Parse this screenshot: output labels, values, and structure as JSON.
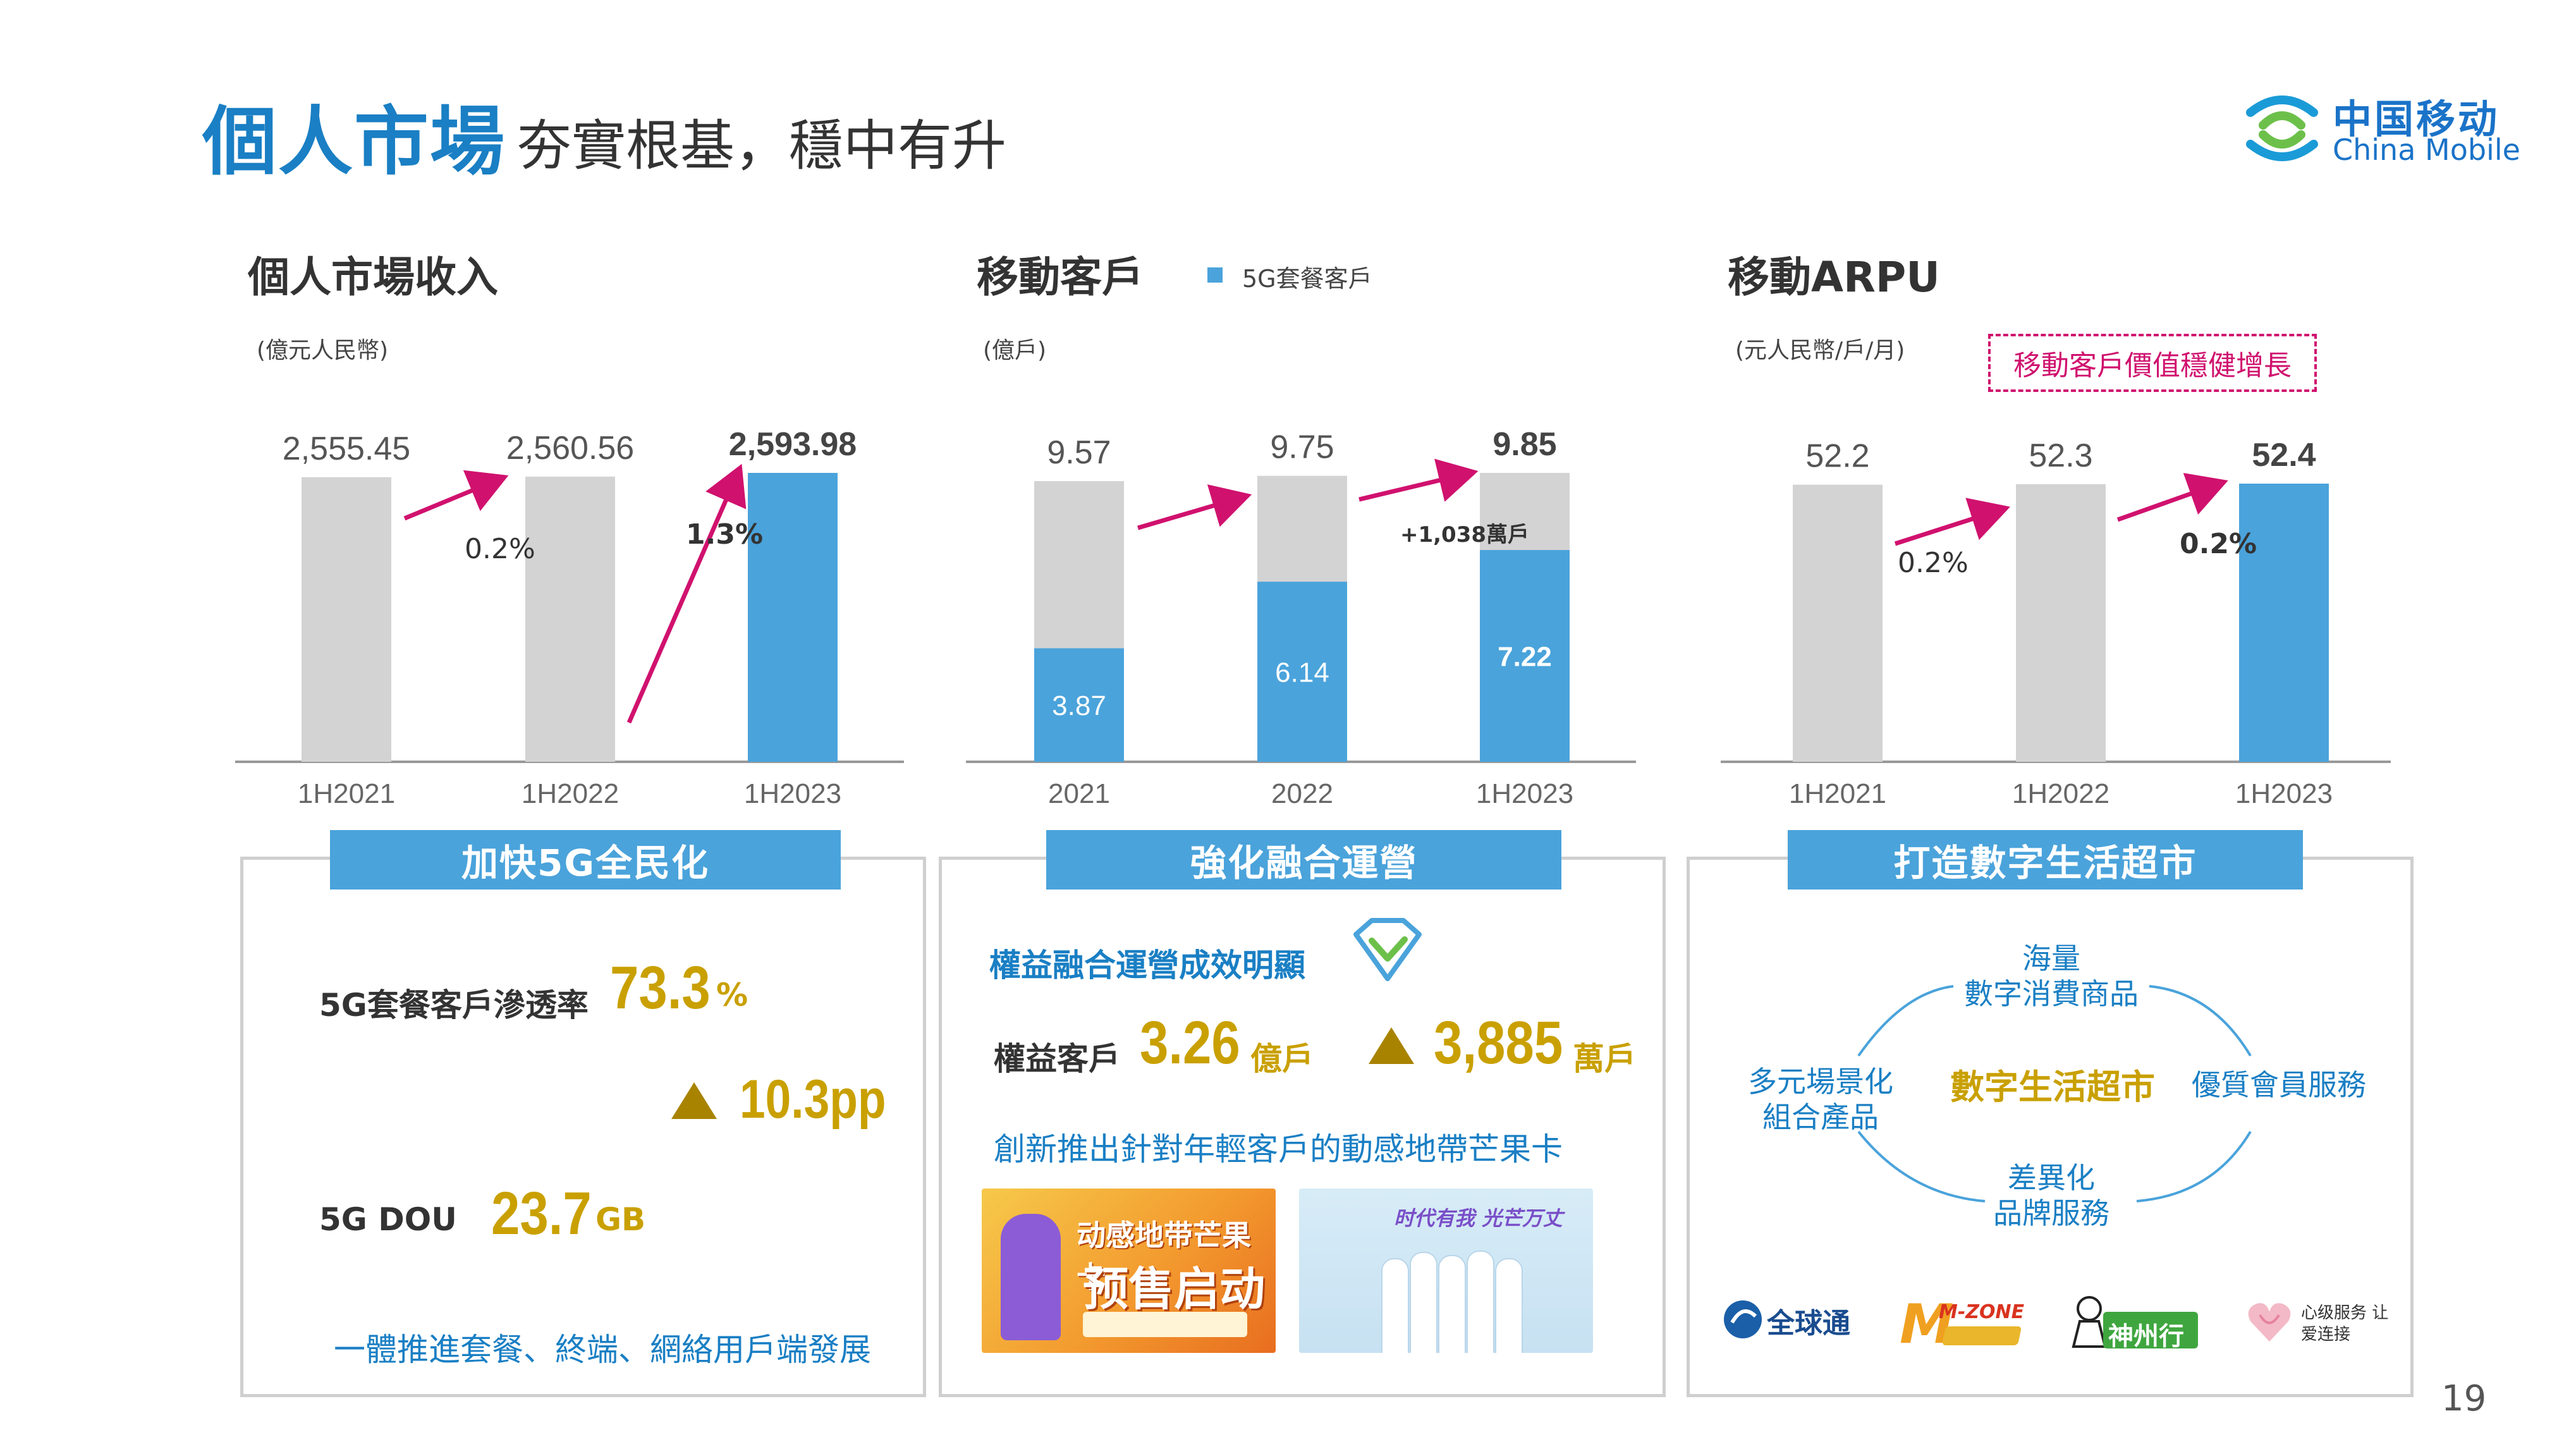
{
  "header": {
    "title_main": "個人市場",
    "title_sub": "夯實根基，穩中有升",
    "logo_cn": "中国移动",
    "logo_en": "China Mobile"
  },
  "colors": {
    "accent_blue": "#4aa3db",
    "bar_gray": "#d3d3d3",
    "arrow_pink": "#d0116e",
    "gold": "#c9a000",
    "title_blue": "#1a7fc4"
  },
  "chart_data": [
    {
      "type": "bar",
      "title": "個人市場收入",
      "unit": "(億元人民幣)",
      "categories": [
        "1H2021",
        "1H2022",
        "1H2023"
      ],
      "values": [
        2555.45,
        2560.56,
        2593.98
      ],
      "value_labels": [
        "2,555.45",
        "2,560.56",
        "2,593.98"
      ],
      "growth_labels": [
        "0.2%",
        "1.3%"
      ],
      "highlight_last": true,
      "ylim": [
        0,
        2593.98
      ]
    },
    {
      "type": "bar",
      "stacked": true,
      "title": "移動客戶",
      "unit": "(億戶)",
      "legend": "5G套餐客戶",
      "categories": [
        "2021",
        "2022",
        "1H2023"
      ],
      "totals": [
        9.57,
        9.75,
        9.85
      ],
      "series": [
        {
          "name": "5G套餐客戶",
          "values": [
            3.87,
            6.14,
            7.22
          ]
        }
      ],
      "growth_labels": [
        "",
        "+1,038萬戶"
      ],
      "ylim": [
        0,
        9.85
      ]
    },
    {
      "type": "bar",
      "title": "移動ARPU",
      "unit": "(元人民幣/戶/月)",
      "callout": "移動客戶價值穩健增長",
      "categories": [
        "1H2021",
        "1H2022",
        "1H2023"
      ],
      "values": [
        52.2,
        52.3,
        52.4
      ],
      "value_labels": [
        "52.2",
        "52.3",
        "52.4"
      ],
      "growth_labels": [
        "0.2%",
        "0.2%"
      ],
      "highlight_last": true,
      "ylim": [
        0,
        52.4
      ]
    }
  ],
  "box1": {
    "heading": "加快5G全民化",
    "pen_label": "5G套餐客戶滲透率",
    "pen_value": "73.3",
    "pen_unit": "%",
    "pen_change": "10.3pp",
    "dou_label": "5G DOU",
    "dou_value": "23.7",
    "dou_unit": "GB",
    "footer": "一體推進套餐、終端、網絡用戶端發展"
  },
  "box2": {
    "heading": "強化融合運營",
    "line1": "權益融合運營成效明顯",
    "rights_label": "權益客戶",
    "rights_value": "3.26",
    "rights_unit": "億戶",
    "rights_change": "3,885",
    "rights_change_unit": "萬戶",
    "line3": "創新推出針對年輕客戶的動感地帶芒果卡",
    "img1_text": "动感地带芒果卡",
    "img1_sub": "预售启动",
    "img2_text": "时代有我 光芒万丈"
  },
  "box3": {
    "heading": "打造數字生活超市",
    "top": [
      "海量",
      "數字消費商品"
    ],
    "left": [
      "多元場景化",
      "組合產品"
    ],
    "right": "優質會員服務",
    "bottom": [
      "差異化",
      "品牌服務"
    ],
    "center": "數字生活超市",
    "brands": [
      "全球通",
      "M-ZONE",
      "神州行",
      "心级服务 让爱连接"
    ]
  },
  "page_number": "19"
}
